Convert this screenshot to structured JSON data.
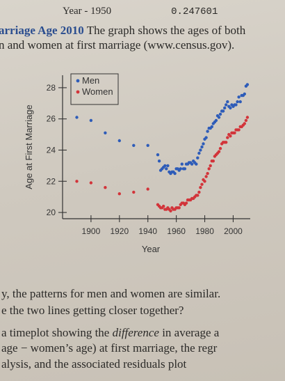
{
  "page": {
    "top_label": "Year - 1950",
    "top_value": "0.247601",
    "heading": "arriage Age 2010",
    "intro_rest": " The graph shows the ages of both",
    "intro_line2": "n and women at first marriage (www.census.gov).",
    "q_line1": "y, the patterns for men and women are similar.",
    "q_line2": "e the two lines getting closer together?",
    "q_line3a": " a timeplot showing the ",
    "q_line3_em": "difference",
    "q_line3b": " in average a",
    "q_line4": " age − women’s age) at first marriage, the regr",
    "q_line5": "alysis, and the associated residuals plot"
  },
  "colors": {
    "men": "#2e5cb8",
    "women": "#d2343a"
  },
  "chart_data": {
    "type": "scatter",
    "xlabel": "Year",
    "ylabel": "Age at First Marriage",
    "xlim": [
      1880,
      2012
    ],
    "ylim": [
      19.6,
      28.8
    ],
    "xticks": [
      1900,
      1920,
      1940,
      1960,
      1980,
      2000
    ],
    "yticks": [
      20,
      22,
      24,
      26,
      28
    ],
    "legend_position": "top-left",
    "series": [
      {
        "name": "Men",
        "points": [
          [
            1890,
            26.1
          ],
          [
            1900,
            25.9
          ],
          [
            1910,
            25.1
          ],
          [
            1920,
            24.6
          ],
          [
            1930,
            24.3
          ],
          [
            1940,
            24.3
          ],
          [
            1947,
            23.7
          ],
          [
            1948,
            23.3
          ],
          [
            1949,
            22.7
          ],
          [
            1950,
            22.8
          ],
          [
            1951,
            22.9
          ],
          [
            1952,
            23.0
          ],
          [
            1953,
            22.8
          ],
          [
            1954,
            23.0
          ],
          [
            1955,
            22.6
          ],
          [
            1956,
            22.5
          ],
          [
            1957,
            22.6
          ],
          [
            1958,
            22.6
          ],
          [
            1959,
            22.5
          ],
          [
            1960,
            22.8
          ],
          [
            1961,
            22.8
          ],
          [
            1962,
            22.7
          ],
          [
            1963,
            22.8
          ],
          [
            1964,
            23.1
          ],
          [
            1965,
            22.8
          ],
          [
            1966,
            22.8
          ],
          [
            1967,
            23.1
          ],
          [
            1968,
            23.1
          ],
          [
            1969,
            23.2
          ],
          [
            1970,
            23.2
          ],
          [
            1971,
            23.1
          ],
          [
            1972,
            23.3
          ],
          [
            1973,
            23.2
          ],
          [
            1974,
            23.1
          ],
          [
            1975,
            23.5
          ],
          [
            1976,
            23.8
          ],
          [
            1977,
            24.0
          ],
          [
            1978,
            24.2
          ],
          [
            1979,
            24.4
          ],
          [
            1980,
            24.7
          ],
          [
            1981,
            24.8
          ],
          [
            1982,
            25.2
          ],
          [
            1983,
            25.4
          ],
          [
            1984,
            25.4
          ],
          [
            1985,
            25.5
          ],
          [
            1986,
            25.7
          ],
          [
            1987,
            25.8
          ],
          [
            1988,
            25.9
          ],
          [
            1989,
            26.2
          ],
          [
            1990,
            26.1
          ],
          [
            1991,
            26.3
          ],
          [
            1992,
            26.5
          ],
          [
            1993,
            26.5
          ],
          [
            1994,
            26.7
          ],
          [
            1995,
            26.9
          ],
          [
            1996,
            27.1
          ],
          [
            1997,
            26.8
          ],
          [
            1998,
            26.7
          ],
          [
            1999,
            26.9
          ],
          [
            2000,
            26.8
          ],
          [
            2001,
            26.9
          ],
          [
            2002,
            26.9
          ],
          [
            2003,
            27.1
          ],
          [
            2004,
            27.4
          ],
          [
            2005,
            27.1
          ],
          [
            2006,
            27.5
          ],
          [
            2007,
            27.5
          ],
          [
            2008,
            27.6
          ],
          [
            2009,
            28.1
          ],
          [
            2010,
            28.2
          ]
        ]
      },
      {
        "name": "Women",
        "points": [
          [
            1890,
            22.0
          ],
          [
            1900,
            21.9
          ],
          [
            1910,
            21.6
          ],
          [
            1920,
            21.2
          ],
          [
            1930,
            21.3
          ],
          [
            1940,
            21.5
          ],
          [
            1947,
            20.5
          ],
          [
            1948,
            20.4
          ],
          [
            1949,
            20.3
          ],
          [
            1950,
            20.3
          ],
          [
            1951,
            20.4
          ],
          [
            1952,
            20.2
          ],
          [
            1953,
            20.2
          ],
          [
            1954,
            20.3
          ],
          [
            1955,
            20.2
          ],
          [
            1956,
            20.1
          ],
          [
            1957,
            20.3
          ],
          [
            1958,
            20.2
          ],
          [
            1959,
            20.2
          ],
          [
            1960,
            20.3
          ],
          [
            1961,
            20.3
          ],
          [
            1962,
            20.3
          ],
          [
            1963,
            20.5
          ],
          [
            1964,
            20.6
          ],
          [
            1965,
            20.6
          ],
          [
            1966,
            20.5
          ],
          [
            1967,
            20.6
          ],
          [
            1968,
            20.8
          ],
          [
            1969,
            20.8
          ],
          [
            1970,
            20.8
          ],
          [
            1971,
            20.9
          ],
          [
            1972,
            20.9
          ],
          [
            1973,
            21.0
          ],
          [
            1974,
            21.1
          ],
          [
            1975,
            21.1
          ],
          [
            1976,
            21.3
          ],
          [
            1977,
            21.6
          ],
          [
            1978,
            21.8
          ],
          [
            1979,
            22.1
          ],
          [
            1980,
            22.0
          ],
          [
            1981,
            22.3
          ],
          [
            1982,
            22.5
          ],
          [
            1983,
            22.8
          ],
          [
            1984,
            23.0
          ],
          [
            1985,
            23.3
          ],
          [
            1986,
            23.3
          ],
          [
            1987,
            23.6
          ],
          [
            1988,
            23.7
          ],
          [
            1989,
            23.8
          ],
          [
            1990,
            23.9
          ],
          [
            1991,
            24.1
          ],
          [
            1992,
            24.4
          ],
          [
            1993,
            24.5
          ],
          [
            1994,
            24.5
          ],
          [
            1995,
            24.5
          ],
          [
            1996,
            24.8
          ],
          [
            1997,
            25.0
          ],
          [
            1998,
            24.9
          ],
          [
            1999,
            25.1
          ],
          [
            2000,
            25.1
          ],
          [
            2001,
            25.1
          ],
          [
            2002,
            25.3
          ],
          [
            2003,
            25.3
          ],
          [
            2004,
            25.3
          ],
          [
            2005,
            25.5
          ],
          [
            2006,
            25.5
          ],
          [
            2007,
            25.6
          ],
          [
            2008,
            25.7
          ],
          [
            2009,
            25.9
          ],
          [
            2010,
            26.1
          ]
        ]
      }
    ]
  }
}
